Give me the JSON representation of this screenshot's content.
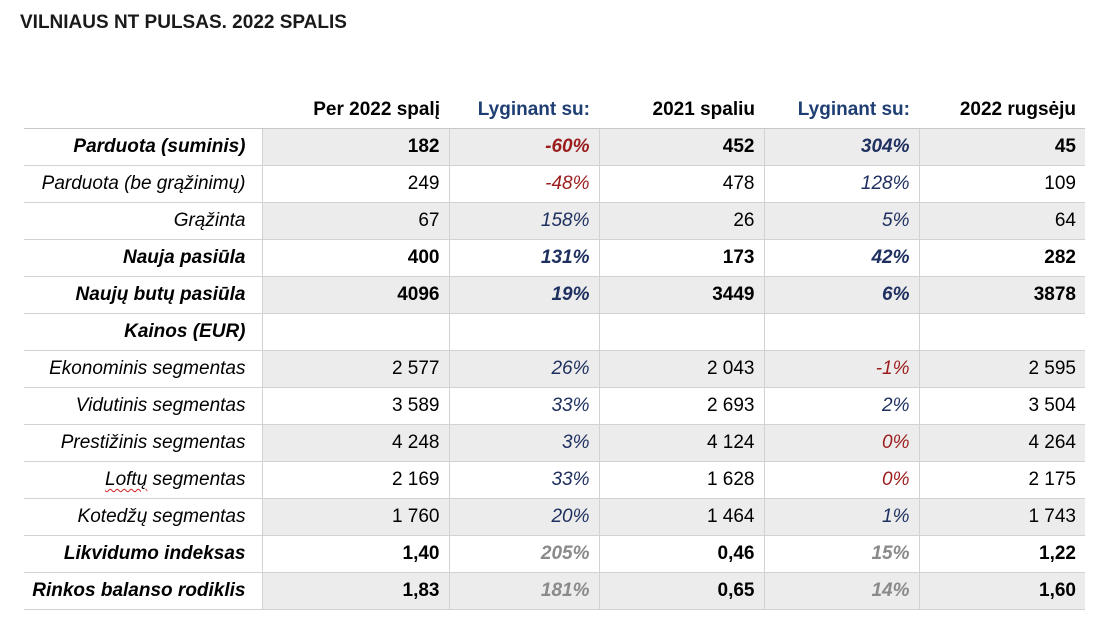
{
  "title": "VILNIAUS NT PULSAS. 2022 SPALIS",
  "headers": [
    "",
    "Per 2022 spalį",
    "Lyginant su:",
    "2021 spaliu",
    "Lyginant su:",
    "2022 rugsėju"
  ],
  "rows": [
    {
      "label": "Parduota (suminis)",
      "bold": true,
      "shaded": true,
      "cells": [
        "182",
        "-60%",
        "452",
        "304%",
        "45"
      ],
      "tones": [
        "",
        "neg",
        "",
        "pos",
        ""
      ]
    },
    {
      "label": "Parduota (be grąžinimų)",
      "bold": false,
      "shaded": false,
      "cells": [
        "249",
        "-48%",
        "478",
        "128%",
        "109"
      ],
      "tones": [
        "",
        "neg",
        "",
        "pos",
        ""
      ]
    },
    {
      "label": "Grąžinta",
      "bold": false,
      "shaded": true,
      "cells": [
        "67",
        "158%",
        "26",
        "5%",
        "64"
      ],
      "tones": [
        "",
        "pos",
        "",
        "pos",
        ""
      ]
    },
    {
      "label": "Nauja pasiūla",
      "bold": true,
      "shaded": false,
      "cells": [
        "400",
        "131%",
        "173",
        "42%",
        "282"
      ],
      "tones": [
        "",
        "pos",
        "",
        "pos",
        ""
      ]
    },
    {
      "label": "Naujų butų pasiūla",
      "bold": true,
      "shaded": true,
      "cells": [
        "4096",
        "19%",
        "3449",
        "6%",
        "3878"
      ],
      "tones": [
        "",
        "pos",
        "",
        "pos",
        ""
      ]
    },
    {
      "label": "Kainos (EUR)",
      "bold": true,
      "shaded": false,
      "section": true,
      "cells": [
        "",
        "",
        "",
        "",
        ""
      ],
      "tones": [
        "",
        "",
        "",
        "",
        ""
      ]
    },
    {
      "label": "Ekonominis segmentas",
      "bold": false,
      "shaded": true,
      "cells": [
        "2 577",
        "26%",
        "2 043",
        "-1%",
        "2 595"
      ],
      "tones": [
        "",
        "pos",
        "",
        "neg",
        ""
      ]
    },
    {
      "label": "Vidutinis segmentas",
      "bold": false,
      "shaded": false,
      "cells": [
        "3 589",
        "33%",
        "2 693",
        "2%",
        "3 504"
      ],
      "tones": [
        "",
        "pos",
        "",
        "pos",
        ""
      ]
    },
    {
      "label": "Prestižinis segmentas",
      "bold": false,
      "shaded": true,
      "cells": [
        "4 248",
        "3%",
        "4 124",
        "0%",
        "4 264"
      ],
      "tones": [
        "",
        "pos",
        "",
        "neg",
        ""
      ]
    },
    {
      "label": "Loftų segmentas",
      "bold": false,
      "shaded": false,
      "spell_word": "Loftų",
      "cells": [
        "2 169",
        "33%",
        "1 628",
        "0%",
        "2 175"
      ],
      "tones": [
        "",
        "pos",
        "",
        "neg",
        ""
      ]
    },
    {
      "label": "Kotedžų segmentas",
      "bold": false,
      "shaded": true,
      "cells": [
        "1 760",
        "20%",
        "1 464",
        "1%",
        "1 743"
      ],
      "tones": [
        "",
        "pos",
        "",
        "pos",
        ""
      ]
    },
    {
      "label": "Likvidumo indeksas",
      "bold": true,
      "shaded": false,
      "cells": [
        "1,40",
        "205%",
        "0,46",
        "15%",
        "1,22"
      ],
      "tones": [
        "",
        "gray",
        "",
        "gray",
        ""
      ]
    },
    {
      "label": "Rinkos balanso rodiklis",
      "bold": true,
      "shaded": true,
      "cells": [
        "1,83",
        "181%",
        "0,65",
        "14%",
        "1,60"
      ],
      "tones": [
        "",
        "gray",
        "",
        "gray",
        ""
      ]
    }
  ]
}
